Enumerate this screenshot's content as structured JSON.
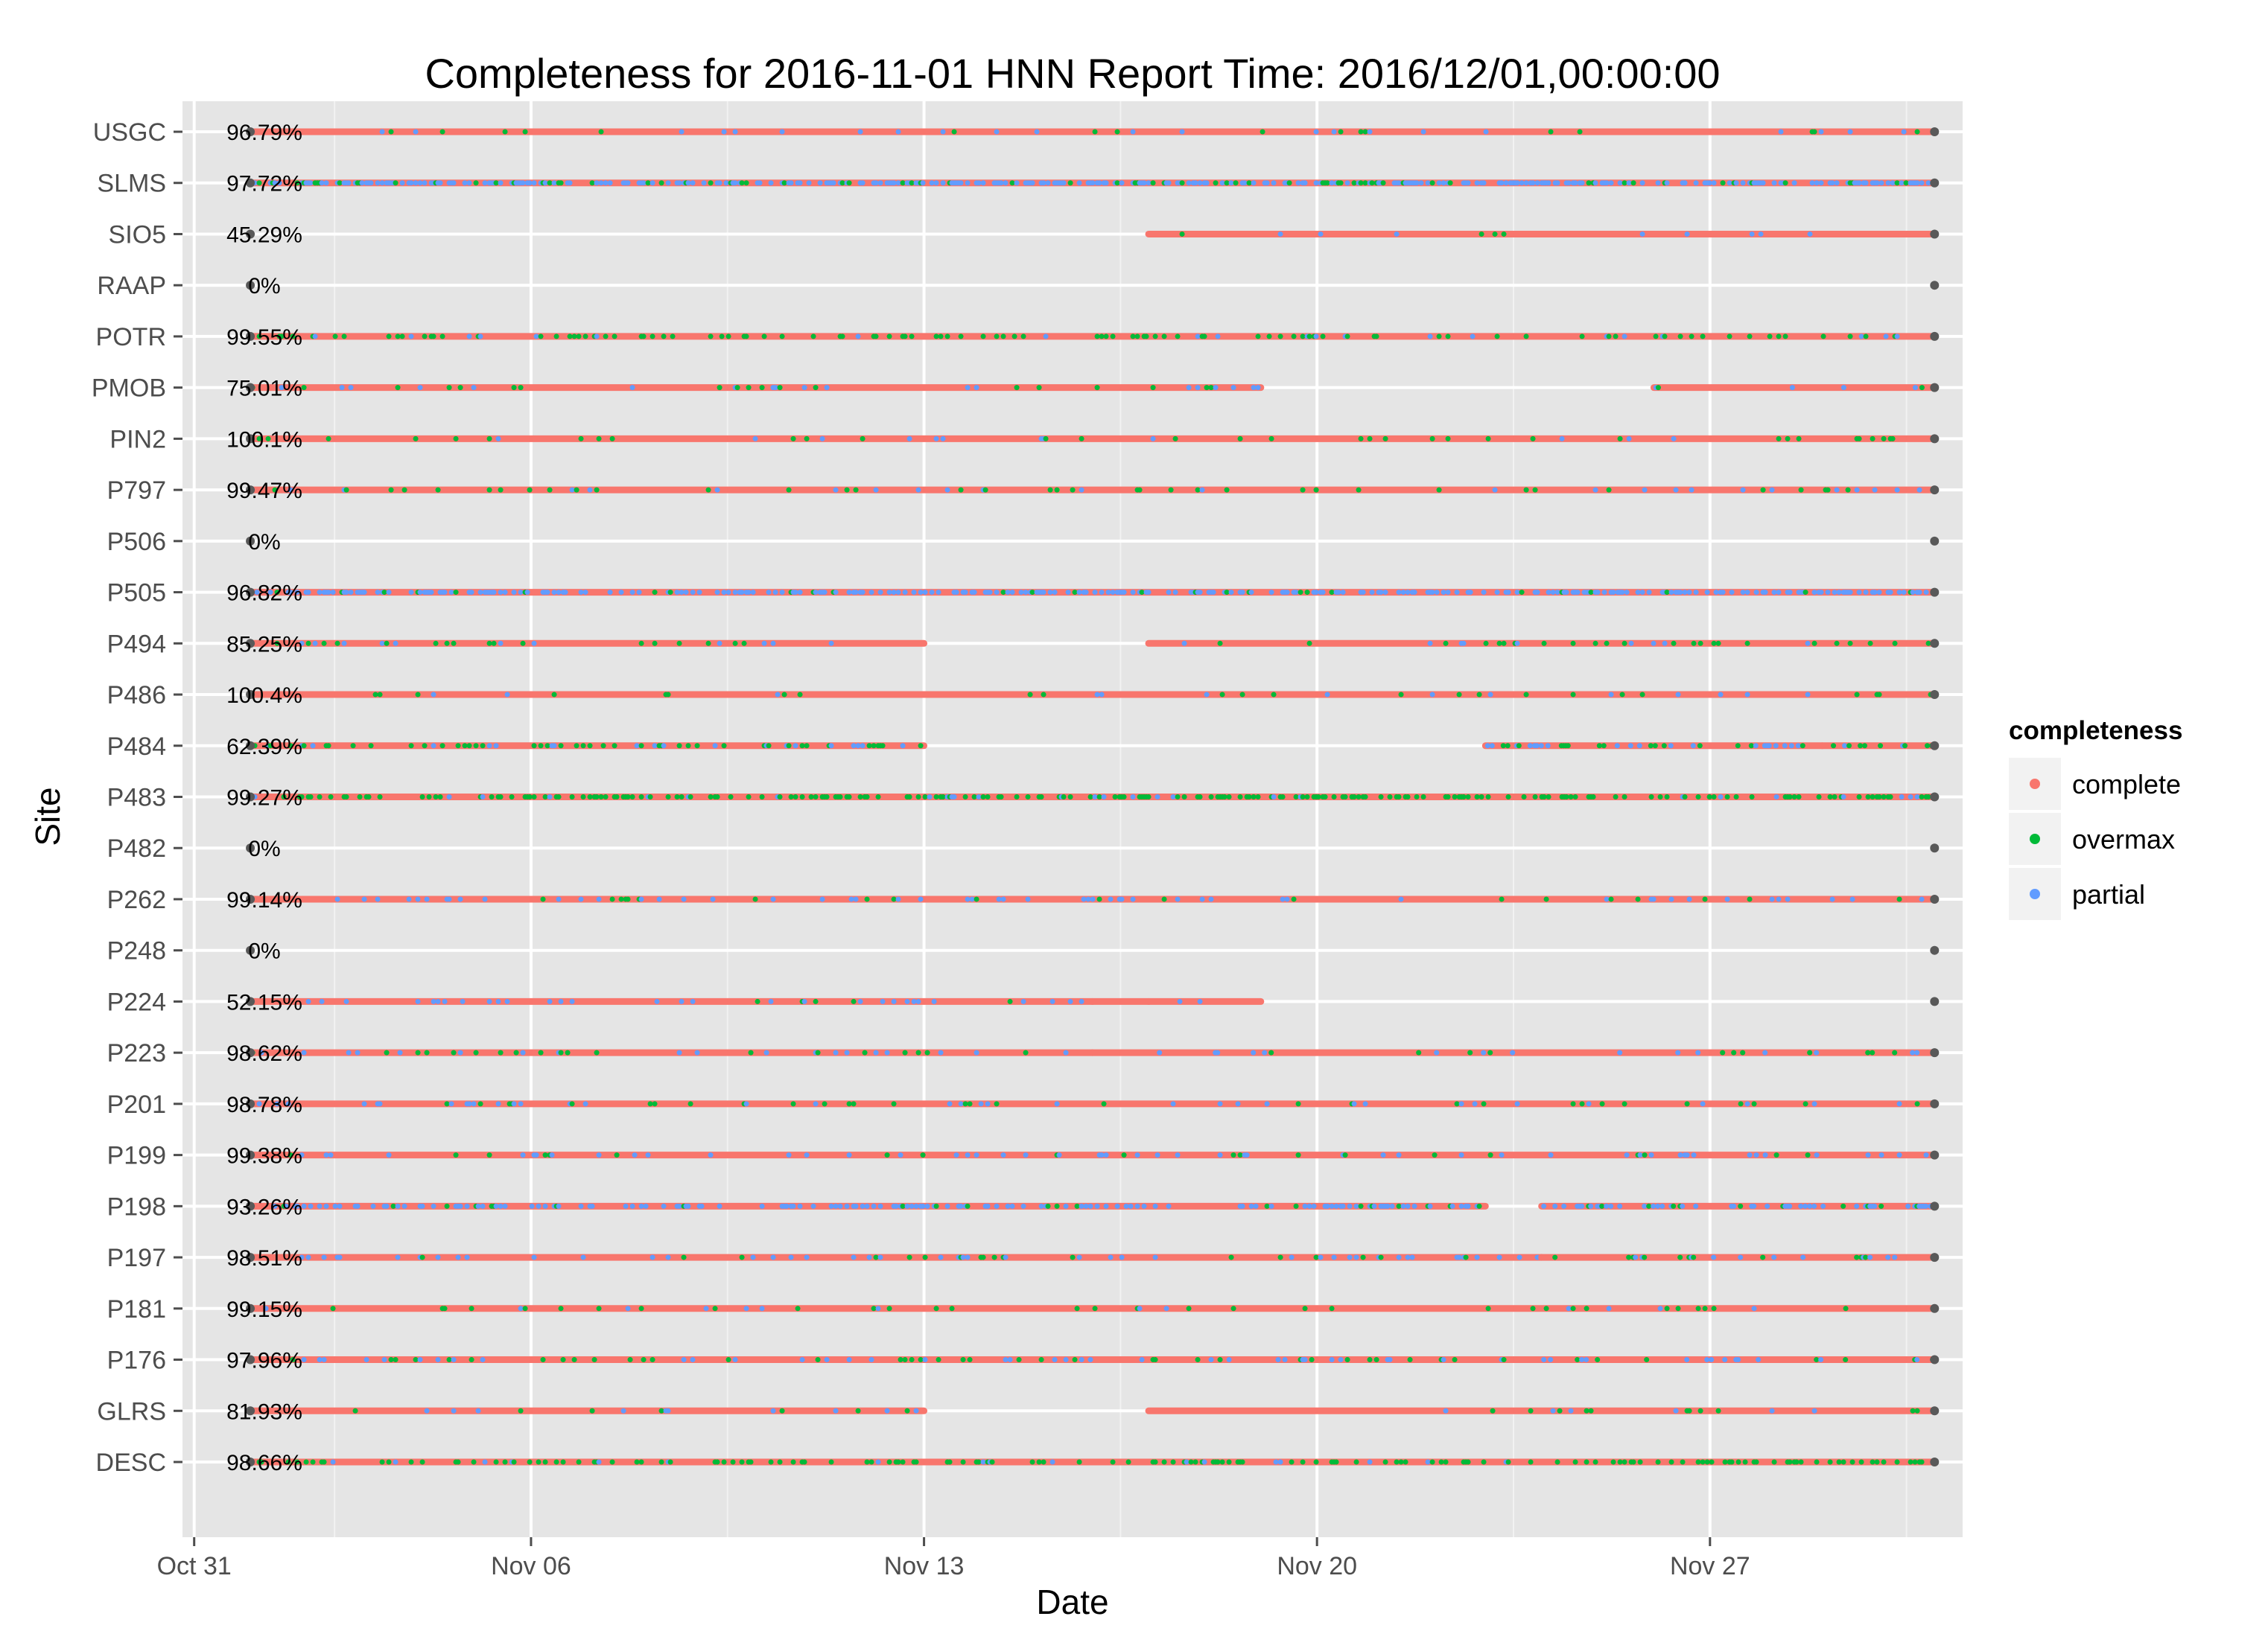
{
  "chart_data": {
    "type": "scatter",
    "title": "Completeness for  2016-11-01 HNN  Report Time:  2016/12/01,00:00:00",
    "xlabel": "Date",
    "ylabel": "Site",
    "x_axis": {
      "type": "date",
      "range": [
        "2016-10-30T19:00",
        "2016-12-01T12:00"
      ],
      "ticks": [
        {
          "value": "2016-10-31",
          "label": "Oct 31"
        },
        {
          "value": "2016-11-06",
          "label": "Nov 06"
        },
        {
          "value": "2016-11-13",
          "label": "Nov 13"
        },
        {
          "value": "2016-11-20",
          "label": "Nov 20"
        },
        {
          "value": "2016-11-27",
          "label": "Nov 27"
        }
      ],
      "minor_ticks": [
        "2016-11-02T12:00",
        "2016-11-09T12:00",
        "2016-11-16T12:00",
        "2016-11-23T12:00",
        "2016-11-30T12:00"
      ]
    },
    "data_start": "2016-11-01",
    "data_end": "2016-12-01",
    "grid": true,
    "legend": {
      "title": "completeness",
      "position": "right",
      "entries": [
        {
          "name": "complete",
          "color": "#F8766D"
        },
        {
          "name": "overmax",
          "color": "#00BA38"
        },
        {
          "name": "partial",
          "color": "#619CFF"
        }
      ]
    },
    "marker_color": "#595959",
    "sites": [
      {
        "site": "USGC",
        "pct": "96.79%",
        "coverage": [
          [
            "2016-11-01",
            "2016-12-01"
          ]
        ],
        "main": "complete",
        "mix": {
          "overmax": 0.02,
          "partial": 0.03
        }
      },
      {
        "site": "SLMS",
        "pct": "97.72%",
        "coverage": [
          [
            "2016-11-01",
            "2016-12-01"
          ]
        ],
        "main": "complete",
        "mix": {
          "overmax": 0.08,
          "partial": 0.4
        }
      },
      {
        "site": "SIO5",
        "pct": "45.29%",
        "coverage": [
          [
            "2016-11-17",
            "2016-12-01"
          ]
        ],
        "main": "complete",
        "mix": {
          "overmax": 0.01,
          "partial": 0.02
        }
      },
      {
        "site": "RAAP",
        "pct": "0%",
        "coverage": [],
        "main": "complete",
        "mix": {
          "overmax": 0,
          "partial": 0
        }
      },
      {
        "site": "POTR",
        "pct": "99.55%",
        "coverage": [
          [
            "2016-11-01",
            "2016-12-01"
          ]
        ],
        "main": "complete",
        "mix": {
          "overmax": 0.12,
          "partial": 0.03
        }
      },
      {
        "site": "PMOB",
        "pct": "75.01%",
        "coverage": [
          [
            "2016-11-01",
            "2016-11-19"
          ],
          [
            "2016-11-26",
            "2016-12-01"
          ]
        ],
        "main": "complete",
        "mix": {
          "overmax": 0.03,
          "partial": 0.04
        }
      },
      {
        "site": "PIN2",
        "pct": "100.1%",
        "coverage": [
          [
            "2016-11-01",
            "2016-12-01"
          ]
        ],
        "main": "complete",
        "mix": {
          "overmax": 0.05,
          "partial": 0.01
        }
      },
      {
        "site": "P797",
        "pct": "99.47%",
        "coverage": [
          [
            "2016-11-01",
            "2016-12-01"
          ]
        ],
        "main": "complete",
        "mix": {
          "overmax": 0.04,
          "partial": 0.03
        }
      },
      {
        "site": "P506",
        "pct": "0%",
        "coverage": [],
        "main": "complete",
        "mix": {
          "overmax": 0,
          "partial": 0
        }
      },
      {
        "site": "P505",
        "pct": "96.82%",
        "coverage": [
          [
            "2016-11-01",
            "2016-12-01"
          ]
        ],
        "main": "complete",
        "mix": {
          "overmax": 0.03,
          "partial": 0.35
        }
      },
      {
        "site": "P494",
        "pct": "85.25%",
        "coverage": [
          [
            "2016-11-01",
            "2016-11-13"
          ],
          [
            "2016-11-17",
            "2016-12-01"
          ]
        ],
        "main": "complete",
        "mix": {
          "overmax": 0.05,
          "partial": 0.03
        }
      },
      {
        "site": "P486",
        "pct": "100.4%",
        "coverage": [
          [
            "2016-11-01",
            "2016-12-01"
          ]
        ],
        "main": "complete",
        "mix": {
          "overmax": 0.03,
          "partial": 0.02
        }
      },
      {
        "site": "P484",
        "pct": "62.39%",
        "coverage": [
          [
            "2016-11-01",
            "2016-11-13"
          ],
          [
            "2016-11-23",
            "2016-11-29"
          ],
          [
            "2016-11-29",
            "2016-12-01"
          ]
        ],
        "main": "complete",
        "mix": {
          "overmax": 0.15,
          "partial": 0.08
        }
      },
      {
        "site": "P483",
        "pct": "99.27%",
        "coverage": [
          [
            "2016-11-01",
            "2016-12-01"
          ]
        ],
        "main": "complete",
        "mix": {
          "overmax": 0.3,
          "partial": 0.03
        }
      },
      {
        "site": "P482",
        "pct": "0%",
        "coverage": [],
        "main": "complete",
        "mix": {
          "overmax": 0,
          "partial": 0
        }
      },
      {
        "site": "P262",
        "pct": "99.14%",
        "coverage": [
          [
            "2016-11-01",
            "2016-12-01"
          ]
        ],
        "main": "complete",
        "mix": {
          "overmax": 0.02,
          "partial": 0.06
        }
      },
      {
        "site": "P248",
        "pct": "0%",
        "coverage": [],
        "main": "complete",
        "mix": {
          "overmax": 0,
          "partial": 0
        }
      },
      {
        "site": "P224",
        "pct": "52.15%",
        "coverage": [
          [
            "2016-11-01",
            "2016-11-16"
          ],
          [
            "2016-11-16",
            "2016-11-17"
          ],
          [
            "2016-11-17",
            "2016-11-19"
          ]
        ],
        "main": "complete",
        "mix": {
          "overmax": 0.01,
          "partial": 0.06
        }
      },
      {
        "site": "P223",
        "pct": "98.62%",
        "coverage": [
          [
            "2016-11-01",
            "2016-11-16"
          ],
          [
            "2016-11-16",
            "2016-12-01"
          ]
        ],
        "main": "complete",
        "mix": {
          "overmax": 0.04,
          "partial": 0.05
        }
      },
      {
        "site": "P201",
        "pct": "98.78%",
        "coverage": [
          [
            "2016-11-01",
            "2016-12-01"
          ]
        ],
        "main": "complete",
        "mix": {
          "overmax": 0.03,
          "partial": 0.06
        }
      },
      {
        "site": "P199",
        "pct": "99.38%",
        "coverage": [
          [
            "2016-11-01",
            "2016-12-01"
          ]
        ],
        "main": "complete",
        "mix": {
          "overmax": 0.02,
          "partial": 0.06
        }
      },
      {
        "site": "P198",
        "pct": "93.26%",
        "coverage": [
          [
            "2016-11-01",
            "2016-11-23"
          ],
          [
            "2016-11-24",
            "2016-12-01"
          ]
        ],
        "main": "complete",
        "mix": {
          "overmax": 0.04,
          "partial": 0.25
        }
      },
      {
        "site": "P197",
        "pct": "98.51%",
        "coverage": [
          [
            "2016-11-01",
            "2016-11-24"
          ],
          [
            "2016-11-24",
            "2016-12-01"
          ]
        ],
        "main": "complete",
        "mix": {
          "overmax": 0.03,
          "partial": 0.08
        }
      },
      {
        "site": "P181",
        "pct": "99.15%",
        "coverage": [
          [
            "2016-11-01",
            "2016-12-01"
          ]
        ],
        "main": "complete",
        "mix": {
          "overmax": 0.03,
          "partial": 0.02
        }
      },
      {
        "site": "P176",
        "pct": "97.96%",
        "coverage": [
          [
            "2016-11-01",
            "2016-11-24"
          ],
          [
            "2016-11-24",
            "2016-12-01"
          ]
        ],
        "main": "complete",
        "mix": {
          "overmax": 0.06,
          "partial": 0.06
        }
      },
      {
        "site": "GLRS",
        "pct": "81.93%",
        "coverage": [
          [
            "2016-11-01",
            "2016-11-13"
          ],
          [
            "2016-11-17",
            "2016-12-01"
          ]
        ],
        "main": "complete",
        "mix": {
          "overmax": 0.03,
          "partial": 0.02
        }
      },
      {
        "site": "DESC",
        "pct": "98.66%",
        "coverage": [
          [
            "2016-11-01",
            "2016-12-01"
          ]
        ],
        "main": "complete",
        "mix": {
          "overmax": 0.18,
          "partial": 0.03
        }
      }
    ]
  }
}
